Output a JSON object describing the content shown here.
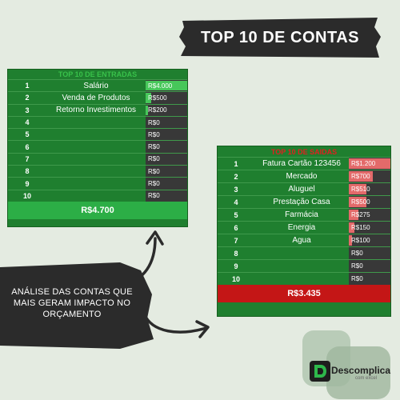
{
  "header": {
    "title": "TOP 10 DE CONTAS"
  },
  "entradas": {
    "title": "TOP 10 DE ENTRADAS",
    "rows": [
      {
        "rank": "1",
        "name": "Salário",
        "value": "R$4.000",
        "fraction": 1.0
      },
      {
        "rank": "2",
        "name": "Venda de Produtos",
        "value": "R$500",
        "fraction": 0.125
      },
      {
        "rank": "3",
        "name": "Retorno Investimentos",
        "value": "R$200",
        "fraction": 0.05
      },
      {
        "rank": "4",
        "name": "",
        "value": "R$0",
        "fraction": 0
      },
      {
        "rank": "5",
        "name": "",
        "value": "R$0",
        "fraction": 0
      },
      {
        "rank": "6",
        "name": "",
        "value": "R$0",
        "fraction": 0
      },
      {
        "rank": "7",
        "name": "",
        "value": "R$0",
        "fraction": 0
      },
      {
        "rank": "8",
        "name": "",
        "value": "R$0",
        "fraction": 0
      },
      {
        "rank": "9",
        "name": "",
        "value": "R$0",
        "fraction": 0
      },
      {
        "rank": "10",
        "name": "",
        "value": "R$0",
        "fraction": 0
      }
    ],
    "total": "R$4.700"
  },
  "saidas": {
    "title": "TOP 10 DE SAIDAS",
    "rows": [
      {
        "rank": "1",
        "name": "Fatura Cartão 123456",
        "value": "R$1.200",
        "fraction": 1.0
      },
      {
        "rank": "2",
        "name": "Mercado",
        "value": "R$700",
        "fraction": 0.583
      },
      {
        "rank": "3",
        "name": "Aluguel",
        "value": "R$510",
        "fraction": 0.425
      },
      {
        "rank": "4",
        "name": "Prestação Casa",
        "value": "R$500",
        "fraction": 0.417
      },
      {
        "rank": "5",
        "name": "Farmácia",
        "value": "R$275",
        "fraction": 0.229
      },
      {
        "rank": "6",
        "name": "Energia",
        "value": "R$150",
        "fraction": 0.125
      },
      {
        "rank": "7",
        "name": "Agua",
        "value": "R$100",
        "fraction": 0.083
      },
      {
        "rank": "8",
        "name": "",
        "value": "R$0",
        "fraction": 0
      },
      {
        "rank": "9",
        "name": "",
        "value": "R$0",
        "fraction": 0
      },
      {
        "rank": "10",
        "name": "",
        "value": "R$0",
        "fraction": 0
      }
    ],
    "total": "R$3.435"
  },
  "callout": {
    "text": "ANÁLISE DAS CONTAS QUE MAIS GERAM IMPACTO NO ORÇAMENTO"
  },
  "logo": {
    "name": "Descomplica",
    "sub": "com excel"
  }
}
